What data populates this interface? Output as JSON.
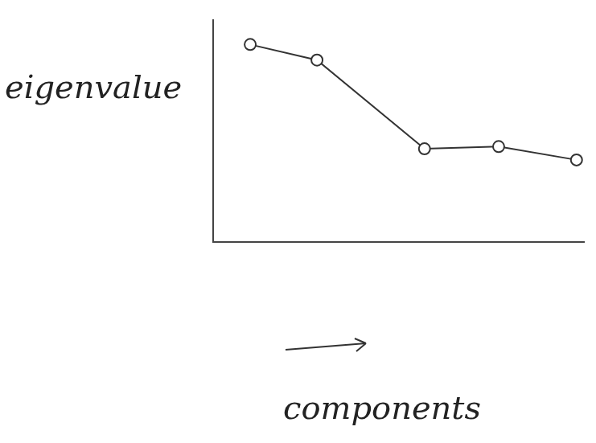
{
  "chart_data": {
    "type": "line",
    "y_label": "eigenvalue",
    "x_label": "components",
    "x": [
      1,
      2.8,
      5.7,
      7.7,
      9.8
    ],
    "values": [
      8.9,
      8.2,
      4.2,
      4.3,
      3.7
    ],
    "xlim": [
      0,
      10
    ],
    "ylim": [
      0,
      10
    ],
    "grid": false,
    "tick_labels": false,
    "marker": "circle",
    "line_style": "solid",
    "color": "#333333"
  }
}
